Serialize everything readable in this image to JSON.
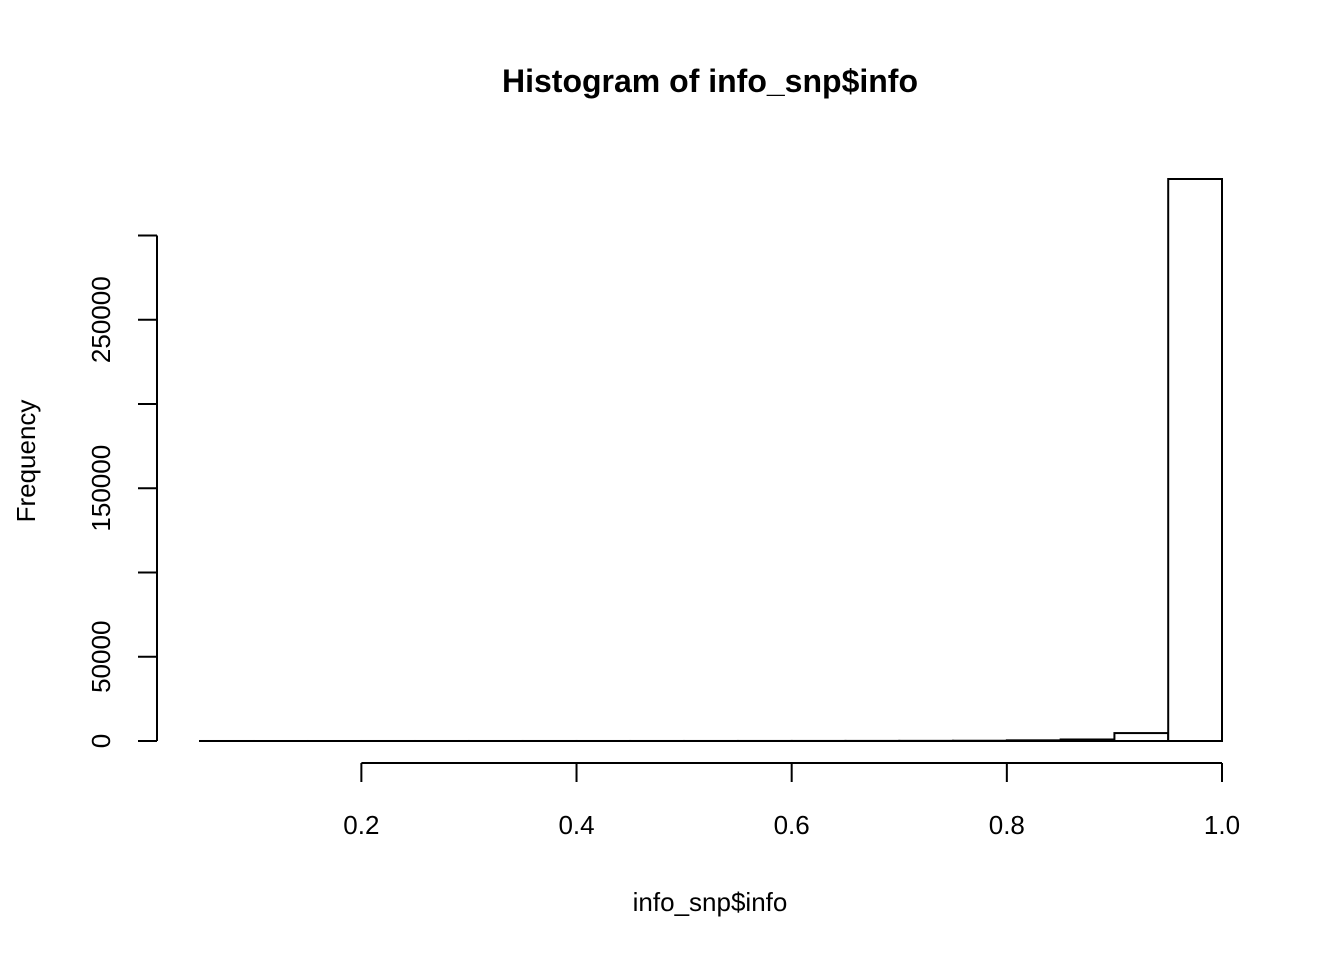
{
  "chart_data": {
    "type": "bar",
    "title": "Histogram of info_snp$info",
    "xlabel": "info_snp$info",
    "ylabel": "Frequency",
    "bin_edges": [
      0.05,
      0.1,
      0.15,
      0.2,
      0.25,
      0.3,
      0.35,
      0.4,
      0.45,
      0.5,
      0.55,
      0.6,
      0.65,
      0.7,
      0.75,
      0.8,
      0.85,
      0.9,
      0.95,
      1.0
    ],
    "counts": [
      4,
      2,
      3,
      5,
      6,
      8,
      10,
      12,
      15,
      20,
      28,
      40,
      60,
      95,
      160,
      400,
      900,
      4700,
      333500
    ],
    "x_ticks": [
      0.2,
      0.4,
      0.6,
      0.8,
      1.0
    ],
    "x_tick_labels": [
      "0.2",
      "0.4",
      "0.6",
      "0.8",
      "1.0"
    ],
    "y_ticks": [
      0,
      50000,
      100000,
      150000,
      200000,
      250000,
      300000
    ],
    "y_tick_labels": [
      "0",
      "50000",
      "",
      "150000",
      "",
      "250000",
      ""
    ],
    "xlim": [
      0.05,
      1.0
    ],
    "ylim": [
      0,
      333500
    ],
    "grid": false,
    "bar_fill": "#ffffff",
    "bar_stroke": "#000000"
  }
}
